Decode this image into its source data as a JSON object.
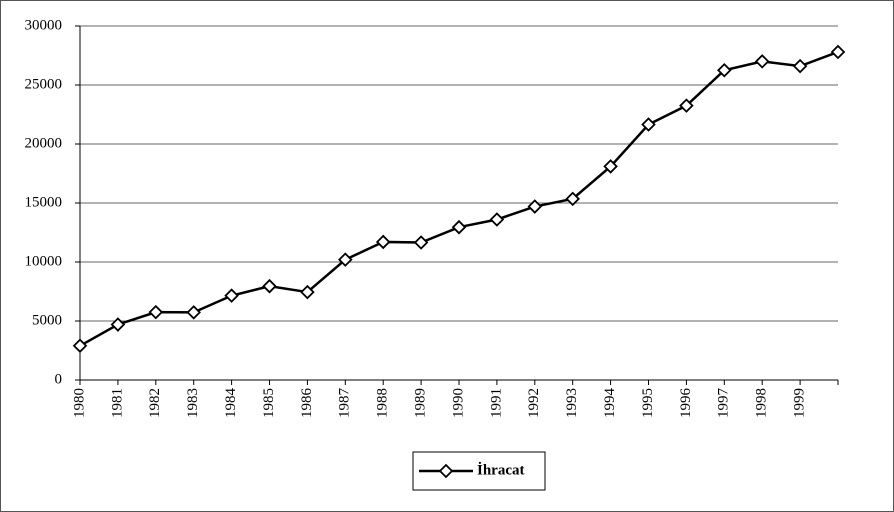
{
  "chart_data": {
    "type": "line",
    "categories": [
      "1980",
      "1981",
      "1982",
      "1983",
      "1984",
      "1985",
      "1986",
      "1987",
      "1988",
      "1989",
      "1990",
      "1991",
      "1992",
      "1993",
      "1994",
      "1995",
      "1996",
      "1997",
      "1998",
      "1999",
      null
    ],
    "series": [
      {
        "name": "İhracat",
        "color": "#000000",
        "values": [
          2900,
          4700,
          5750,
          5730,
          7150,
          7950,
          7450,
          10200,
          11700,
          11650,
          12950,
          13600,
          14700,
          15350,
          18100,
          21650,
          23250,
          26250,
          27000,
          26600,
          27800
        ]
      }
    ],
    "ylim": [
      0,
      30000
    ],
    "yticks": [
      0,
      5000,
      10000,
      15000,
      20000,
      25000,
      30000
    ],
    "grid": true,
    "legend": "bottom"
  }
}
